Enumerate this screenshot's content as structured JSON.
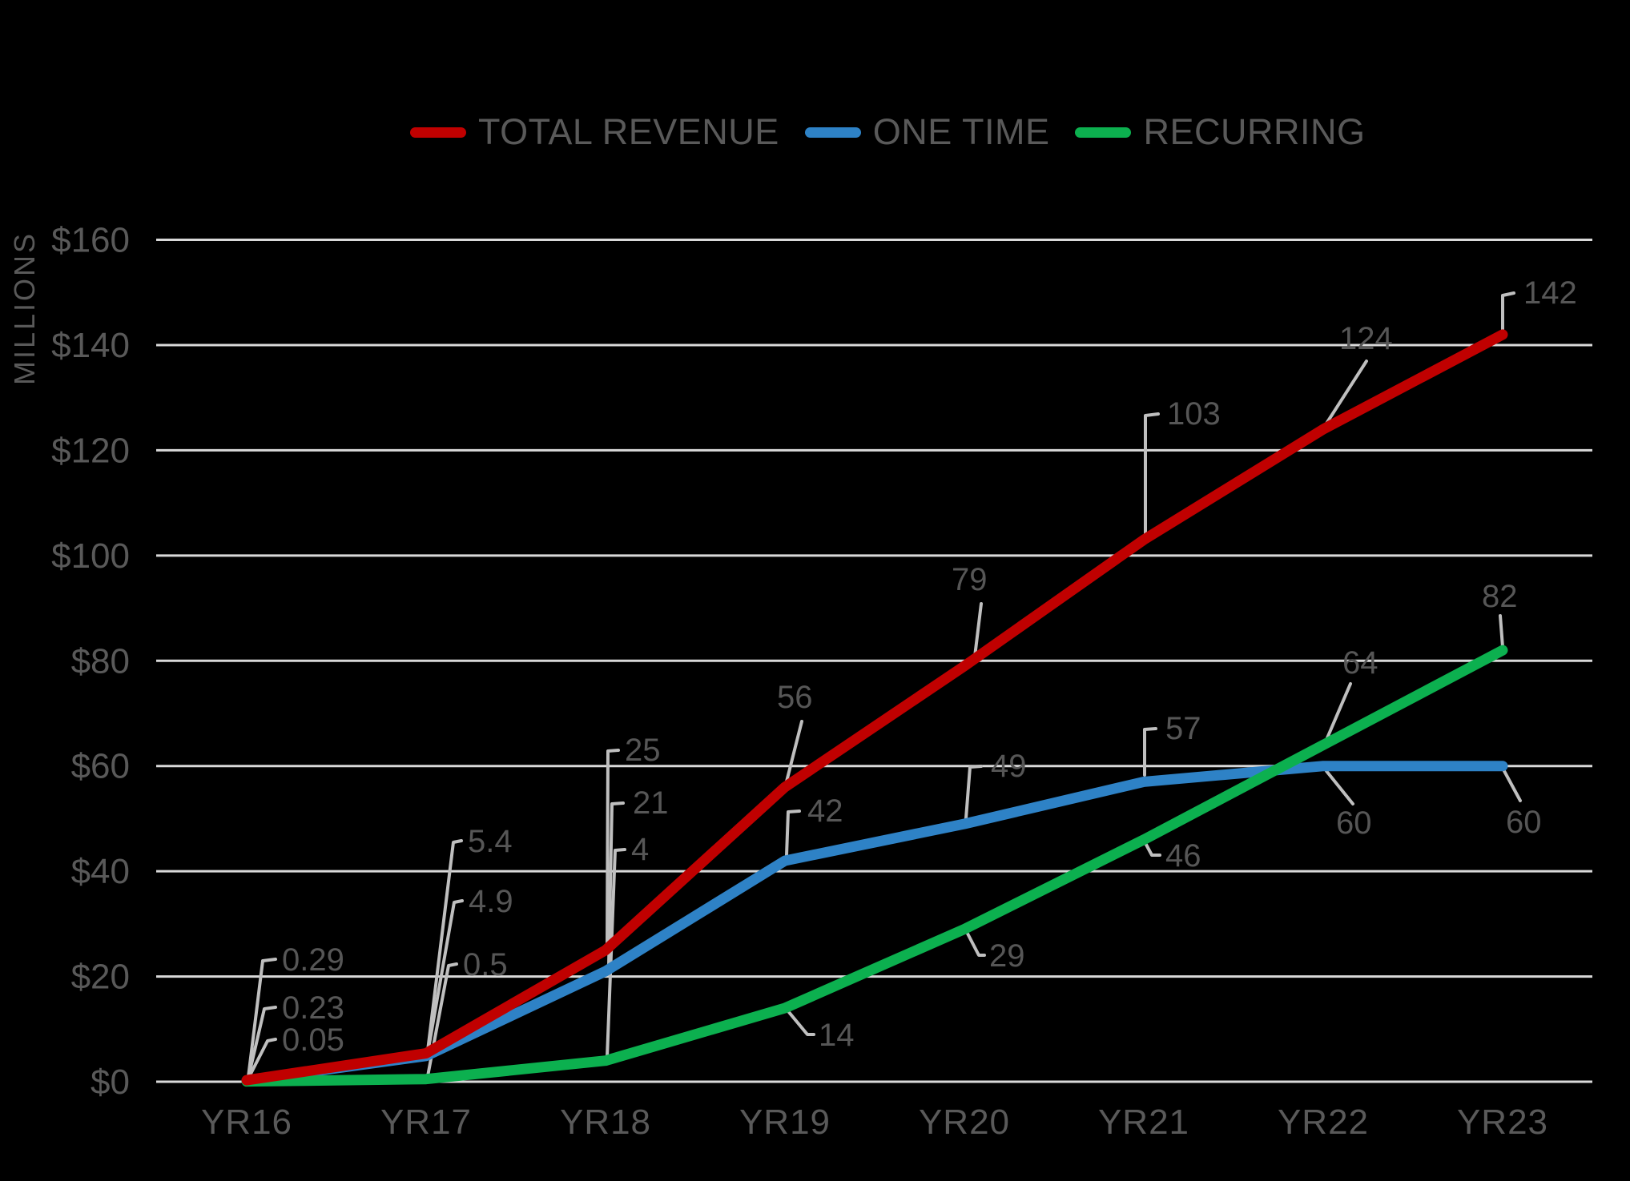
{
  "chart_data": {
    "type": "line",
    "title": "",
    "ylabel": "MILLIONS",
    "xlabel": "",
    "categories": [
      "YR16",
      "YR17",
      "YR18",
      "YR19",
      "YR20",
      "YR21",
      "YR22",
      "YR23"
    ],
    "series": [
      {
        "name": "TOTAL REVENUE",
        "color": "#C00000",
        "values": [
          0.29,
          5.4,
          25,
          56,
          79,
          103,
          124,
          142
        ]
      },
      {
        "name": "ONE TIME",
        "color": "#2E82C6",
        "values": [
          0.23,
          4.9,
          21,
          42,
          49,
          57,
          60,
          60
        ]
      },
      {
        "name": "RECURRING",
        "color": "#0CB04F",
        "values": [
          0.05,
          0.5,
          4,
          14,
          29,
          46,
          64,
          82
        ]
      }
    ],
    "y_axis": {
      "range": [
        0,
        160
      ],
      "ticks": [
        {
          "value": 0,
          "label": "$0"
        },
        {
          "value": 20,
          "label": "$20"
        },
        {
          "value": 40,
          "label": "$40"
        },
        {
          "value": 60,
          "label": "$60"
        },
        {
          "value": 80,
          "label": "$80"
        },
        {
          "value": 100,
          "label": "$100"
        },
        {
          "value": 120,
          "label": "$120"
        },
        {
          "value": 140,
          "label": "$140"
        },
        {
          "value": 160,
          "label": "$160"
        }
      ]
    },
    "legend_position": "top",
    "grid": true,
    "data_labels_visible": true,
    "colors": {
      "background": "#000000",
      "gridline": "#D9D9D9",
      "axis_text": "#595959",
      "data_label_text": "#565656",
      "leader_line": "#BFBFBF"
    }
  }
}
